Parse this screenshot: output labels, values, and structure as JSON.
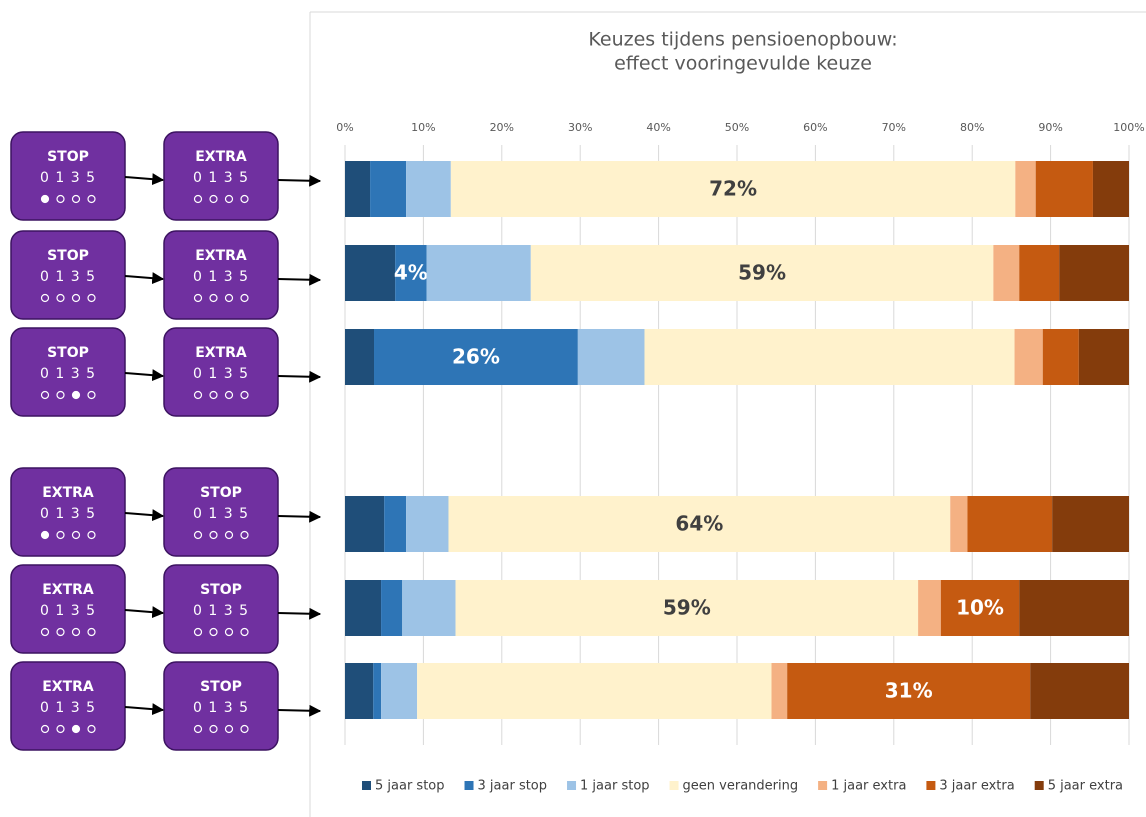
{
  "chart_data": {
    "type": "stacked-barh",
    "title": "Keuzes tijdens pensioenopbouw:",
    "subtitle": "effect vooringevulde keuze",
    "categories": [
      null,
      null,
      null,
      null,
      null,
      null
    ],
    "xlim": [
      0,
      100
    ],
    "xticks": [
      {
        "value": 0,
        "label": "0%"
      },
      {
        "value": 10,
        "label": "10%"
      },
      {
        "value": 20,
        "label": "20%"
      },
      {
        "value": 30,
        "label": "30%"
      },
      {
        "value": 40,
        "label": "40%"
      },
      {
        "value": 50,
        "label": "50%"
      },
      {
        "value": 60,
        "label": "60%"
      },
      {
        "value": 70,
        "label": "70%"
      },
      {
        "value": 80,
        "label": "80%"
      },
      {
        "value": 90,
        "label": "90%"
      },
      {
        "value": 100,
        "label": "100%"
      }
    ],
    "grid": true,
    "legend": "bottom",
    "series": [
      {
        "name": "5 jaar stop",
        "color": "#1f4e79",
        "values": [
          3.2,
          6.4,
          3.7,
          5.0,
          4.6,
          3.6
        ]
      },
      {
        "name": "3 jaar stop",
        "color": "#2e75b6",
        "values": [
          4.6,
          4,
          26,
          2.8,
          2.7,
          1.0
        ],
        "value_labels": [
          null,
          "4%",
          "26%",
          null,
          null,
          null
        ]
      },
      {
        "name": "1 jaar stop",
        "color": "#9dc3e6",
        "values": [
          5.7,
          13.3,
          8.5,
          5.4,
          6.8,
          4.6
        ]
      },
      {
        "name": "geen verandering",
        "color": "#fff2cc",
        "values": [
          72,
          59,
          47.2,
          64,
          59,
          45.2
        ],
        "value_labels": [
          "72%",
          "59%",
          null,
          "64%",
          "59%",
          null
        ]
      },
      {
        "name": "1 jaar extra",
        "color": "#f4b183",
        "values": [
          2.6,
          3.3,
          3.6,
          2.2,
          2.9,
          2.0
        ]
      },
      {
        "name": "3 jaar extra",
        "color": "#c55a11",
        "values": [
          7.3,
          5.1,
          4.6,
          10.8,
          10,
          31
        ],
        "value_labels": [
          null,
          null,
          null,
          null,
          "10%",
          "31%"
        ]
      },
      {
        "name": "5 jaar extra",
        "color": "#843c0c",
        "values": [
          4.6,
          8.9,
          6.4,
          9.8,
          14.0,
          12.6
        ]
      }
    ]
  },
  "flows": [
    {
      "from": {
        "label": "STOP",
        "options": "0 1 3 5",
        "selected": 0
      },
      "to": {
        "label": "EXTRA",
        "options": "0 1 3 5"
      }
    },
    {
      "from": {
        "label": "STOP",
        "options": "0 1 3 5"
      },
      "to": {
        "label": "EXTRA",
        "options": "0 1 3 5"
      }
    },
    {
      "from": {
        "label": "STOP",
        "options": "0 1 3 5",
        "selected": 2
      },
      "to": {
        "label": "EXTRA",
        "options": "0 1 3 5"
      }
    },
    {
      "from": {
        "label": "EXTRA",
        "options": "0 1 3 5",
        "selected": 0
      },
      "to": {
        "label": "STOP",
        "options": "0 1 3 5"
      }
    },
    {
      "from": {
        "label": "EXTRA",
        "options": "0 1 3 5"
      },
      "to": {
        "label": "STOP",
        "options": "0 1 3 5"
      }
    },
    {
      "from": {
        "label": "EXTRA",
        "options": "0 1 3 5",
        "selected": 2
      },
      "to": {
        "label": "STOP",
        "options": "0 1 3 5"
      }
    }
  ]
}
